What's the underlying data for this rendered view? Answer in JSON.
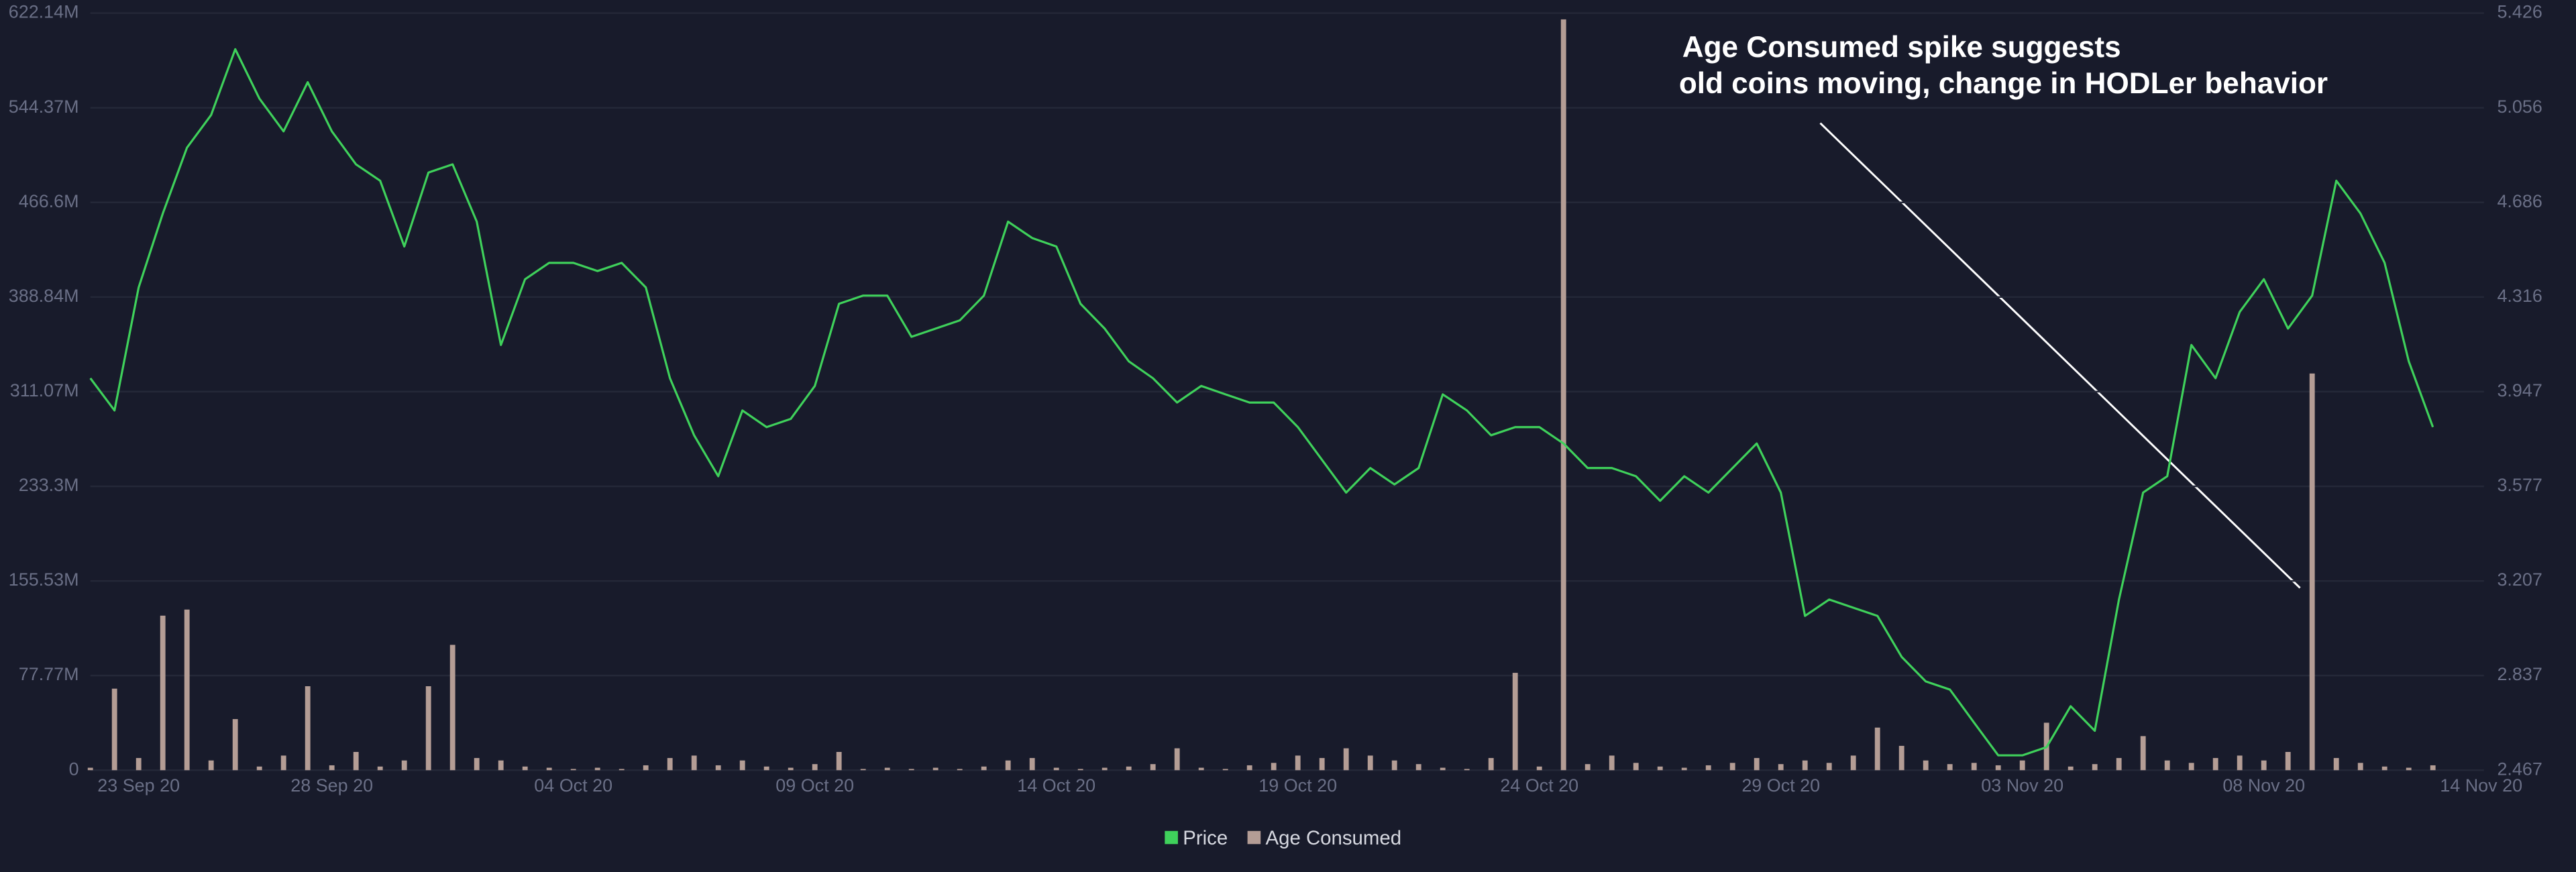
{
  "chart_data": {
    "type": "combo",
    "annotation": [
      "Age Consumed spike suggests",
      "old coins moving, change in HODLer behavior"
    ],
    "categories": [
      null,
      null,
      "23 Sep 20",
      null,
      null,
      null,
      null,
      null,
      null,
      null,
      "28 Sep 20",
      null,
      null,
      null,
      null,
      null,
      null,
      null,
      null,
      null,
      "04 Oct 20",
      null,
      null,
      null,
      null,
      null,
      null,
      null,
      null,
      null,
      "09 Oct 20",
      null,
      null,
      null,
      null,
      null,
      null,
      null,
      null,
      null,
      "14 Oct 20",
      null,
      null,
      null,
      null,
      null,
      null,
      null,
      null,
      null,
      "19 Oct 20",
      null,
      null,
      null,
      null,
      null,
      null,
      null,
      null,
      null,
      "24 Oct 20",
      null,
      null,
      null,
      null,
      null,
      null,
      null,
      null,
      null,
      "29 Oct 20",
      null,
      null,
      null,
      null,
      null,
      null,
      null,
      null,
      null,
      "03 Nov 20",
      null,
      null,
      null,
      null,
      null,
      null,
      null,
      null,
      null,
      "08 Nov 20",
      null,
      null,
      null,
      null,
      null,
      null,
      null,
      null,
      "14 Nov 20"
    ],
    "series": [
      {
        "name": "Price",
        "color": "#3fd15b",
        "type": "line",
        "axis": "y2",
        "values": [
          3.999,
          3.873,
          4.354,
          4.643,
          4.9,
          5.028,
          5.285,
          5.092,
          4.964,
          5.156,
          4.964,
          4.835,
          4.771,
          4.514,
          4.803,
          4.835,
          4.611,
          4.129,
          4.386,
          4.45,
          4.45,
          4.418,
          4.45,
          4.354,
          3.999,
          3.776,
          3.616,
          3.873,
          3.808,
          3.84,
          3.969,
          4.29,
          4.322,
          4.322,
          4.161,
          4.193,
          4.225,
          4.322,
          4.611,
          4.547,
          4.514,
          4.29,
          4.193,
          4.065,
          3.999,
          3.904,
          3.969,
          3.936,
          3.904,
          3.904,
          3.808,
          3.68,
          3.552,
          3.648,
          3.584,
          3.648,
          3.936,
          3.873,
          3.776,
          3.808,
          3.808,
          3.744,
          3.648,
          3.648,
          3.616,
          3.52,
          3.616,
          3.552,
          3.648,
          3.744,
          3.552,
          3.07,
          3.134,
          3.102,
          3.07,
          2.91,
          2.814,
          2.782,
          2.653,
          2.525,
          2.525,
          2.557,
          2.717,
          2.621,
          3.134,
          3.552,
          3.616,
          4.129,
          3.999,
          4.258,
          4.386,
          4.193,
          4.322,
          4.771,
          4.643,
          4.45,
          4.065,
          3.808,
          null,
          null
        ]
      },
      {
        "name": "Age Consumed",
        "color": "#b49d95",
        "type": "bar",
        "values": [
          2000000,
          67000000,
          10000000,
          127000000,
          132000000,
          8000000,
          42000000,
          3000000,
          12000000,
          69000000,
          4000000,
          15000000,
          3000000,
          8000000,
          69000000,
          103000000,
          10000000,
          8000000,
          3000000,
          2000000,
          1000000,
          2000000,
          1000000,
          4000000,
          10000000,
          12000000,
          4000000,
          8000000,
          3000000,
          2000000,
          5000000,
          15000000,
          1000000,
          2000000,
          1000000,
          2000000,
          1000000,
          3000000,
          8000000,
          10000000,
          2000000,
          1000000,
          2000000,
          3000000,
          5000000,
          18000000,
          2000000,
          1000000,
          4000000,
          6000000,
          12000000,
          10000000,
          18000000,
          12000000,
          8000000,
          5000000,
          2000000,
          1000000,
          10000000,
          80000000,
          3000000,
          617000000,
          5000000,
          12000000,
          6000000,
          3000000,
          2000000,
          4000000,
          6000000,
          10000000,
          5000000,
          8000000,
          6000000,
          12000000,
          35000000,
          20000000,
          8000000,
          5000000,
          6000000,
          4000000,
          8000000,
          39000000,
          3000000,
          5000000,
          10000000,
          28000000,
          8000000,
          6000000,
          10000000,
          12000000,
          8000000,
          15000000,
          326000000,
          10000000,
          6000000,
          3000000,
          2000000,
          4000000,
          null,
          null
        ]
      }
    ],
    "ylim": [
      0,
      622140000
    ],
    "yticks": [
      0,
      {
        "value": 77770000,
        "label": "77.77M"
      },
      {
        "value": 155530000,
        "label": "155.53M"
      },
      {
        "value": 233300000,
        "label": "233.3M"
      },
      {
        "value": 311070000,
        "label": "311.07M"
      },
      {
        "value": 388840000,
        "label": "388.84M"
      },
      {
        "value": 466600000,
        "label": "466.6M"
      },
      {
        "value": 544370000,
        "label": "544.37M"
      },
      {
        "value": 622140000,
        "label": "622.14M"
      }
    ],
    "y2lim": [
      2.467,
      5.426
    ],
    "y2ticks": [
      2.467,
      2.837,
      3.207,
      3.577,
      3.947,
      4.316,
      4.686,
      5.056,
      5.426
    ],
    "grid": true,
    "legend": "bottom"
  }
}
